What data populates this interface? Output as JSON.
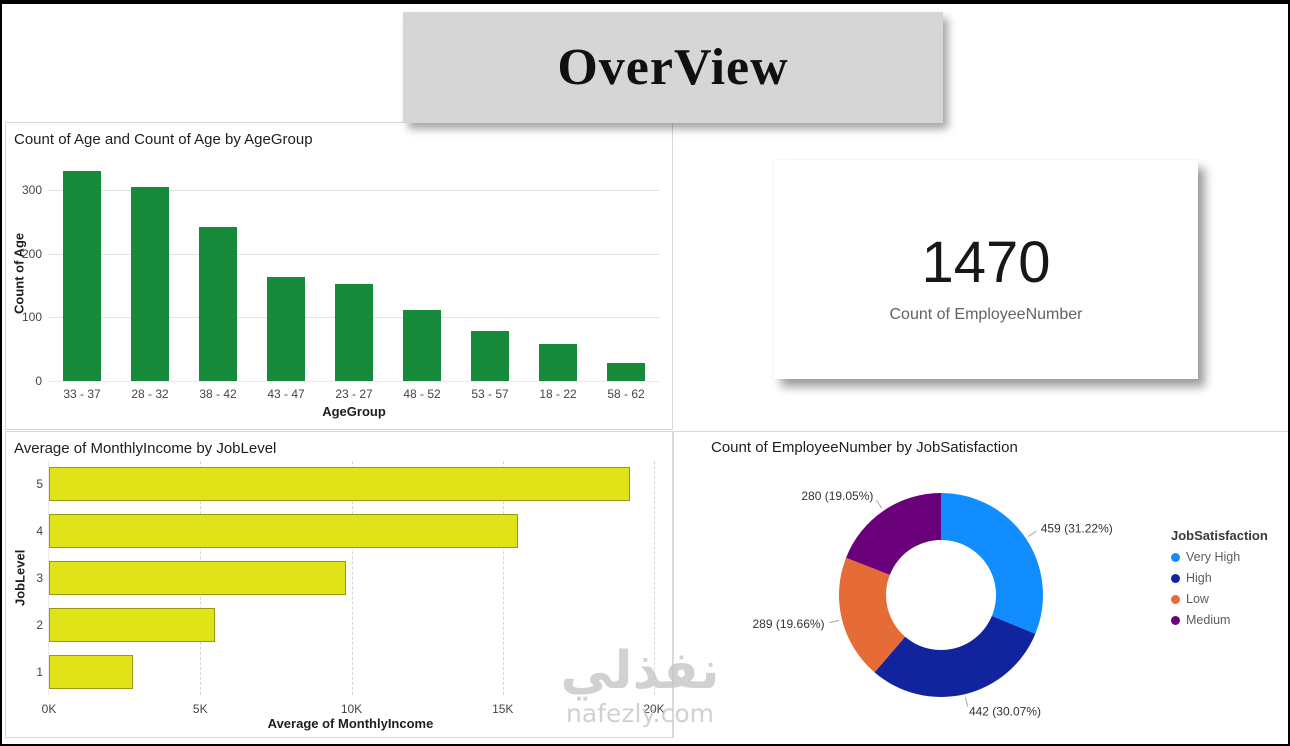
{
  "banner": {
    "title": "OverView"
  },
  "kpi": {
    "value": "1470",
    "label": "Count of EmployeeNumber"
  },
  "watermark": {
    "line1": "نفذلي",
    "line2": "nafezly.com"
  },
  "chart_data": [
    {
      "type": "bar",
      "orientation": "vertical",
      "title": "Count of Age and Count of Age by AgeGroup",
      "xlabel": "AgeGroup",
      "ylabel": "Count of Age",
      "categories": [
        "33 - 37",
        "28 - 32",
        "38 - 42",
        "43 - 47",
        "23 - 27",
        "48 - 52",
        "53 - 57",
        "18 - 22",
        "58 - 62"
      ],
      "values": [
        330,
        306,
        243,
        164,
        152,
        111,
        78,
        58,
        28
      ],
      "yticks": [
        0,
        100,
        200,
        300
      ],
      "ylim": [
        0,
        340
      ],
      "bar_color": "#178A3C",
      "grid": true,
      "legend": false
    },
    {
      "type": "bar",
      "orientation": "horizontal",
      "title": "Average of MonthlyIncome by JobLevel",
      "xlabel": "Average of MonthlyIncome",
      "ylabel": "JobLevel",
      "categories": [
        "5",
        "4",
        "3",
        "2",
        "1"
      ],
      "values": [
        19192,
        15504,
        9817,
        5502,
        2787
      ],
      "xticks": [
        {
          "label": "0K",
          "value": 0
        },
        {
          "label": "5K",
          "value": 5000
        },
        {
          "label": "10K",
          "value": 10000
        },
        {
          "label": "15K",
          "value": 15000
        },
        {
          "label": "20K",
          "value": 20000
        }
      ],
      "xlim": [
        0,
        20000
      ],
      "bar_color": "#E1E319",
      "grid": true,
      "legend": false
    },
    {
      "type": "pie",
      "donut": true,
      "title": "Count of EmployeeNumber by JobSatisfaction",
      "legend_title": "JobSatisfaction",
      "legend_position": "right",
      "segments": [
        {
          "label": "Very High",
          "value": 459,
          "callout": "459 (31.22%)",
          "color": "#118DFF"
        },
        {
          "label": "High",
          "value": 442,
          "callout": "442 (30.07%)",
          "color": "#12239E"
        },
        {
          "label": "Low",
          "value": 289,
          "callout": "289 (19.66%)",
          "color": "#E66C37"
        },
        {
          "label": "Medium",
          "value": 280,
          "callout": "280 (19.05%)",
          "color": "#6B007B"
        }
      ]
    }
  ]
}
